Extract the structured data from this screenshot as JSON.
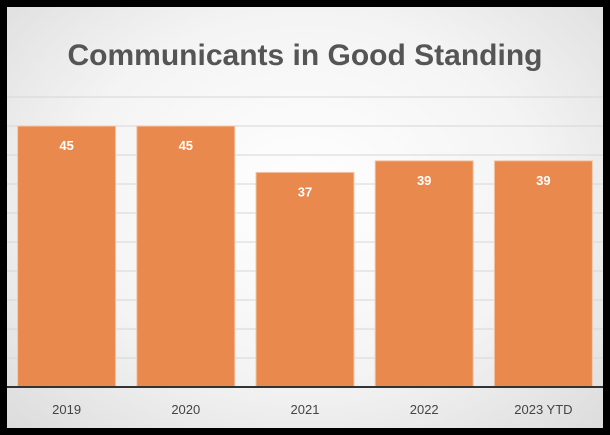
{
  "chart_data": {
    "type": "bar",
    "title": "Communicants in Good Standing",
    "categories": [
      "2019",
      "2020",
      "2021",
      "2022",
      "2023 YTD"
    ],
    "values": [
      45,
      45,
      37,
      39,
      39
    ],
    "xlabel": "",
    "ylabel": "",
    "ylim": [
      0,
      50
    ],
    "grid": true,
    "legend": "none",
    "colors": {
      "bar": "#E9894D",
      "bar_edge": "#f3c7a8",
      "grid": "#d6d6d6",
      "axis": "#333333"
    }
  }
}
